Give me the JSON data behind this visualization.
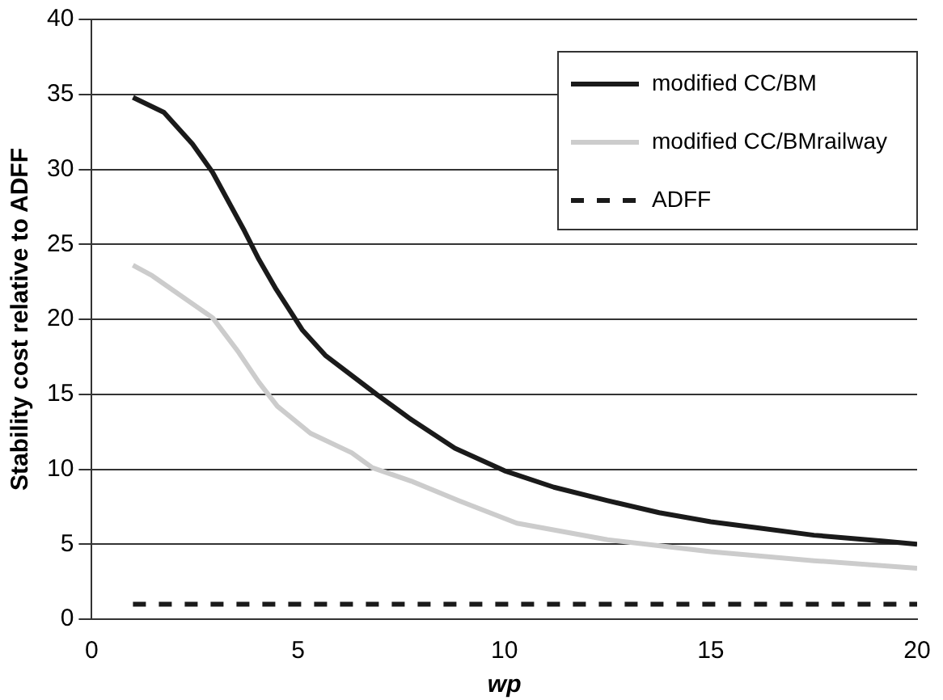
{
  "chart_data": {
    "type": "line",
    "xlabel": "wp",
    "ylabel": "Stability cost relative to ADFF",
    "xlim": [
      0,
      20
    ],
    "xticks": [
      0,
      5,
      10,
      15,
      20
    ],
    "ylim": [
      0,
      40
    ],
    "yticks": [
      0,
      5,
      10,
      15,
      20,
      25,
      30,
      35,
      40
    ],
    "grid": "y",
    "legend": "top right",
    "marker": "none",
    "series": [
      {
        "name": "modified CC/BM",
        "color": "#1a1a1a",
        "line_style": "solid",
        "x": [
          1,
          1.75,
          2.44,
          2.93,
          3.7,
          4.05,
          4.47,
          5.1,
          5.66,
          6.9,
          7.75,
          8.8,
          10,
          11.2,
          12.5,
          13.75,
          15,
          16.1,
          17.5,
          19.2,
          20
        ],
        "values": [
          34.8,
          33.8,
          31.7,
          29.8,
          25.9,
          24,
          22,
          19.3,
          17.6,
          15,
          13.3,
          11.4,
          9.9,
          8.8,
          7.9,
          7.1,
          6.5,
          6.1,
          5.6,
          5.2,
          5
        ]
      },
      {
        "name": "modified CC/BMrailway",
        "color": "#cccccc",
        "line_style": "solid",
        "x": [
          1,
          1.47,
          2.93,
          3.56,
          4.05,
          4.5,
          5.3,
          6.3,
          6.8,
          7.75,
          8.9,
          10.3,
          12.5,
          15,
          17.5,
          20
        ],
        "values": [
          23.6,
          22.9,
          20.1,
          17.8,
          15.8,
          14.2,
          12.4,
          11.1,
          10.1,
          9.2,
          7.9,
          6.4,
          5.3,
          4.5,
          3.9,
          3.4
        ]
      },
      {
        "name": "ADFF",
        "color": "#1a1a1a",
        "line_style": "dashed",
        "x": [
          1,
          20
        ],
        "values": [
          1,
          1
        ]
      }
    ]
  }
}
